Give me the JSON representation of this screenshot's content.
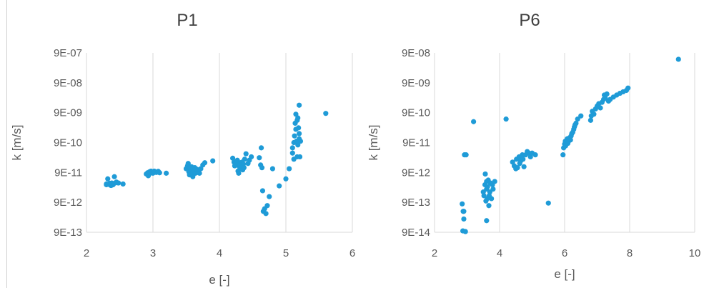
{
  "chart_data": [
    {
      "type": "scatter",
      "title": "P1",
      "xlabel": "e [-]",
      "ylabel": "k [m/s]",
      "xlim": [
        2,
        6
      ],
      "x_ticks": [
        2,
        3,
        4,
        5,
        6
      ],
      "x_tick_labels": [
        "2",
        "3",
        "4",
        "5",
        "6"
      ],
      "y_scale": "log",
      "ylim": [
        9e-13,
        9e-07
      ],
      "y_ticks": [
        9e-13,
        9e-12,
        9e-11,
        9e-10,
        9e-09,
        9e-08,
        9e-07
      ],
      "y_tick_labels": [
        "9E-13",
        "9E-12",
        "9E-11",
        "9E-10",
        "9E-09",
        "9E-08",
        "9E-07"
      ],
      "grid": "vertical",
      "color": "#1f9bd7",
      "series": [
        {
          "points": [
            [
              2.3,
              3.5e-11
            ],
            [
              2.3,
              3.7e-11
            ],
            [
              2.32,
              5.5e-11
            ],
            [
              2.34,
              3.6e-11
            ],
            [
              2.35,
              3.9e-11
            ],
            [
              2.36,
              3.4e-11
            ],
            [
              2.37,
              3.3e-11
            ],
            [
              2.38,
              4e-11
            ],
            [
              2.4,
              3.7e-11
            ],
            [
              2.4,
              3.5e-11
            ],
            [
              2.42,
              6.5e-11
            ],
            [
              2.43,
              4e-11
            ],
            [
              2.45,
              4.3e-11
            ],
            [
              2.48,
              4e-11
            ],
            [
              2.55,
              3.7e-11
            ],
            [
              2.38,
              3.8e-11
            ],
            [
              2.9,
              8e-11
            ],
            [
              2.92,
              8.8e-11
            ],
            [
              2.93,
              7e-11
            ],
            [
              2.95,
              9.5e-11
            ],
            [
              2.96,
              8.5e-11
            ],
            [
              2.97,
              1e-10
            ],
            [
              2.98,
              9.2e-11
            ],
            [
              3.0,
              8.5e-11
            ],
            [
              3.02,
              1e-10
            ],
            [
              3.05,
              9e-11
            ],
            [
              3.08,
              9.8e-11
            ],
            [
              3.1,
              8.8e-11
            ],
            [
              3.2,
              8.5e-11
            ],
            [
              3.5,
              1.2e-10
            ],
            [
              3.52,
              1.5e-10
            ],
            [
              3.53,
              1.8e-10
            ],
            [
              3.54,
              9.5e-11
            ],
            [
              3.55,
              7.5e-11
            ],
            [
              3.56,
              1.3e-10
            ],
            [
              3.57,
              1.1e-10
            ],
            [
              3.58,
              1.4e-10
            ],
            [
              3.6,
              6.5e-11
            ],
            [
              3.6,
              9e-11
            ],
            [
              3.6,
              1.25e-10
            ],
            [
              3.62,
              1.05e-10
            ],
            [
              3.63,
              1.3e-10
            ],
            [
              3.64,
              8.5e-11
            ],
            [
              3.66,
              1.15e-10
            ],
            [
              3.68,
              9e-11
            ],
            [
              3.7,
              8.5e-11
            ],
            [
              3.72,
              1.2e-10
            ],
            [
              3.75,
              1.6e-10
            ],
            [
              3.78,
              1.9e-10
            ],
            [
              3.9,
              2.2e-10
            ],
            [
              4.2,
              2.7e-10
            ],
            [
              4.22,
              2e-10
            ],
            [
              4.23,
              1.5e-10
            ],
            [
              4.25,
              1.8e-10
            ],
            [
              4.27,
              2.3e-10
            ],
            [
              4.28,
              1e-10
            ],
            [
              4.29,
              8.5e-11
            ],
            [
              4.3,
              1.4e-10
            ],
            [
              4.31,
              1.6e-10
            ],
            [
              4.32,
              1.9e-10
            ],
            [
              4.33,
              1.2e-10
            ],
            [
              4.34,
              2e-10
            ],
            [
              4.35,
              1.1e-10
            ],
            [
              4.36,
              1.7e-10
            ],
            [
              4.37,
              1.3e-10
            ],
            [
              4.38,
              2.5e-10
            ],
            [
              4.4,
              3.8e-10
            ],
            [
              4.43,
              1.8e-10
            ],
            [
              4.45,
              2.3e-10
            ],
            [
              4.48,
              3e-10
            ],
            [
              4.6,
              2.8e-10
            ],
            [
              4.62,
              1.6e-10
            ],
            [
              4.63,
              6e-10
            ],
            [
              4.64,
              1.3e-10
            ],
            [
              4.65,
              2.2e-11
            ],
            [
              4.66,
              4.5e-12
            ],
            [
              4.68,
              5.5e-12
            ],
            [
              4.7,
              3.8e-12
            ],
            [
              4.72,
              7e-12
            ],
            [
              4.75,
              1.4e-11
            ],
            [
              4.8,
              1.2e-10
            ],
            [
              4.9,
              3.2e-11
            ],
            [
              5.0,
              5.5e-11
            ],
            [
              5.05,
              1.2e-10
            ],
            [
              5.1,
              6e-10
            ],
            [
              5.1,
              4e-10
            ],
            [
              5.12,
              9e-10
            ],
            [
              5.12,
              2.5e-10
            ],
            [
              5.13,
              1.5e-09
            ],
            [
              5.14,
              4e-09
            ],
            [
              5.15,
              2.5e-09
            ],
            [
              5.15,
              8e-09
            ],
            [
              5.16,
              1e-09
            ],
            [
              5.17,
              5e-09
            ],
            [
              5.17,
              3e-10
            ],
            [
              5.18,
              6e-09
            ],
            [
              5.18,
              7.5e-10
            ],
            [
              5.19,
              2.8e-09
            ],
            [
              5.2,
              1.8e-09
            ],
            [
              5.2,
              1.2e-09
            ],
            [
              5.2,
              1.6e-08
            ],
            [
              5.21,
              3e-10
            ],
            [
              5.22,
              1e-09
            ],
            [
              5.6,
              8.5e-09
            ]
          ]
        }
      ]
    },
    {
      "type": "scatter",
      "title": "P6",
      "xlabel": "e [-]",
      "ylabel": "k [m/s]",
      "xlim": [
        2,
        10
      ],
      "x_ticks": [
        2,
        4,
        6,
        8,
        10
      ],
      "x_tick_labels": [
        "2",
        "4",
        "6",
        "8",
        "10"
      ],
      "y_scale": "log",
      "ylim": [
        9e-14,
        9e-08
      ],
      "y_ticks": [
        9e-14,
        9e-13,
        9e-12,
        9e-11,
        9e-10,
        9e-09,
        9e-08
      ],
      "y_tick_labels": [
        "9E-14",
        "9E-13",
        "9E-12",
        "9E-11",
        "9E-10",
        "9E-09",
        "9E-08"
      ],
      "grid": "vertical",
      "color": "#1f9bd7",
      "series": [
        {
          "points": [
            [
              2.85,
              8e-13
            ],
            [
              2.87,
              1e-13
            ],
            [
              2.88,
              4.5e-13
            ],
            [
              2.9,
              2.5e-13
            ],
            [
              2.9,
              4.5e-13
            ],
            [
              2.92,
              3.5e-11
            ],
            [
              2.95,
              9.5e-14
            ],
            [
              2.97,
              3.5e-11
            ],
            [
              3.2,
              4.5e-10
            ],
            [
              4.2,
              5.5e-10
            ],
            [
              3.5,
              2e-12
            ],
            [
              3.52,
              1.5e-12
            ],
            [
              3.55,
              3.5e-12
            ],
            [
              3.56,
              8e-12
            ],
            [
              3.58,
              1e-12
            ],
            [
              3.6,
              2.5e-12
            ],
            [
              3.6,
              4.5e-12
            ],
            [
              3.6,
              2.2e-13
            ],
            [
              3.62,
              1.2e-12
            ],
            [
              3.63,
              3e-12
            ],
            [
              3.65,
              5e-12
            ],
            [
              3.67,
              7e-13
            ],
            [
              3.68,
              1.5e-12
            ],
            [
              3.7,
              2e-12
            ],
            [
              3.72,
              4e-12
            ],
            [
              3.75,
              1.2e-12
            ],
            [
              3.78,
              3.5e-12
            ],
            [
              3.8,
              2.5e-12
            ],
            [
              3.85,
              4.5e-12
            ],
            [
              4.4,
              2e-11
            ],
            [
              4.45,
              1.5e-11
            ],
            [
              4.5,
              1.2e-11
            ],
            [
              4.52,
              2.5e-11
            ],
            [
              4.55,
              1.3e-11
            ],
            [
              4.6,
              3e-11
            ],
            [
              4.62,
              1.8e-11
            ],
            [
              4.65,
              2.2e-11
            ],
            [
              4.7,
              3.5e-11
            ],
            [
              4.72,
              2.5e-11
            ],
            [
              4.75,
              1.4e-11
            ],
            [
              4.8,
              3.5e-11
            ],
            [
              4.85,
              4.5e-11
            ],
            [
              4.9,
              4e-11
            ],
            [
              4.95,
              3e-11
            ],
            [
              5.0,
              4e-11
            ],
            [
              5.1,
              3.5e-11
            ],
            [
              5.5,
              8.5e-13
            ],
            [
              5.95,
              3.5e-11
            ],
            [
              5.97,
              6e-11
            ],
            [
              6.0,
              8e-11
            ],
            [
              6.02,
              1e-10
            ],
            [
              6.03,
              7e-11
            ],
            [
              6.05,
              9e-11
            ],
            [
              6.08,
              1.2e-10
            ],
            [
              6.1,
              8.5e-11
            ],
            [
              6.12,
              1e-10
            ],
            [
              6.15,
              1.3e-10
            ],
            [
              6.18,
              1.1e-10
            ],
            [
              6.2,
              1.5e-10
            ],
            [
              6.22,
              1.8e-10
            ],
            [
              6.25,
              2e-10
            ],
            [
              6.28,
              2.5e-10
            ],
            [
              6.3,
              3e-10
            ],
            [
              6.32,
              3.5e-10
            ],
            [
              6.35,
              4e-10
            ],
            [
              6.4,
              5.5e-10
            ],
            [
              6.5,
              7e-10
            ],
            [
              6.8,
              5e-10
            ],
            [
              6.82,
              7e-10
            ],
            [
              6.85,
              1e-09
            ],
            [
              6.9,
              8e-10
            ],
            [
              6.95,
              1.2e-09
            ],
            [
              7.0,
              1.5e-09
            ],
            [
              7.05,
              1.8e-09
            ],
            [
              7.1,
              1.3e-09
            ],
            [
              7.15,
              2e-09
            ],
            [
              7.2,
              2.5e-09
            ],
            [
              7.22,
              3.5e-09
            ],
            [
              7.25,
              2.8e-09
            ],
            [
              7.3,
              3.8e-09
            ],
            [
              7.35,
              2.2e-09
            ],
            [
              7.4,
              2.5e-09
            ],
            [
              7.5,
              3e-09
            ],
            [
              7.6,
              3.5e-09
            ],
            [
              7.7,
              4e-09
            ],
            [
              7.8,
              4.5e-09
            ],
            [
              7.9,
              5e-09
            ],
            [
              7.95,
              6e-09
            ],
            [
              9.5,
              5.5e-08
            ]
          ]
        }
      ]
    }
  ]
}
